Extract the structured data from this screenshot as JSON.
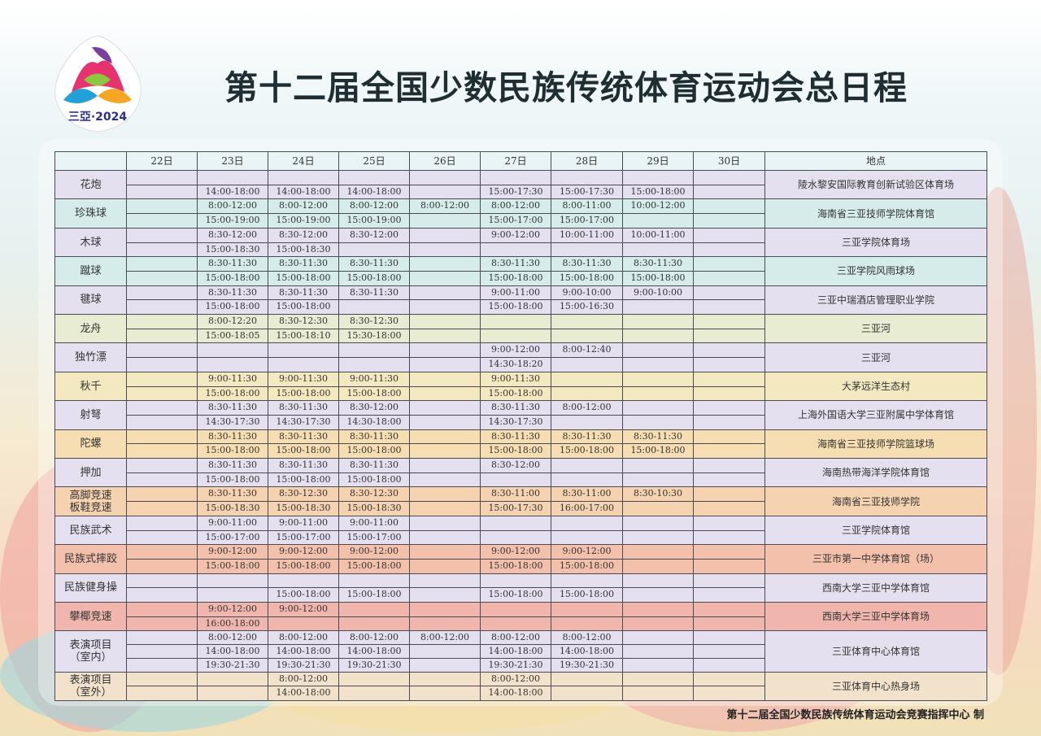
{
  "title": "第十二届全国少数民族传统体育运动会总日程",
  "logo": {
    "text": "三亞·2024"
  },
  "footer": "第十二届全国少数民族传统体育运动会竞赛指挥中心 制",
  "table": {
    "headers": [
      "",
      "22日",
      "23日",
      "24日",
      "25日",
      "26日",
      "27日",
      "28日",
      "29日",
      "30日",
      "地点"
    ],
    "events": [
      {
        "name": "花炮",
        "venue": "陵水黎安国际教育创新试验区体育场",
        "color": "#e4e0f0",
        "rows": [
          [
            "",
            "",
            "",
            "",
            "",
            "",
            "",
            "",
            ""
          ],
          [
            "",
            "14:00-18:00",
            "14:00-18:00",
            "14:00-18:00",
            "",
            "15:00-17:30",
            "15:00-17:30",
            "15:00-18:00",
            ""
          ]
        ]
      },
      {
        "name": "珍珠球",
        "venue": "海南省三亚技师学院体育馆",
        "color": "#d6ecea",
        "rows": [
          [
            "",
            "8:00-12:00",
            "8:00-12:00",
            "8:00-12:00",
            "8:00-12:00",
            "8:00-12:00",
            "8:00-11:00",
            "10:00-12:00",
            ""
          ],
          [
            "",
            "15:00-19:00",
            "15:00-19:00",
            "15:00-19:00",
            "",
            "15:00-17:00",
            "15:00-17:00",
            "",
            ""
          ]
        ]
      },
      {
        "name": "木球",
        "venue": "三亚学院体育场",
        "color": "#e4e0f0",
        "rows": [
          [
            "",
            "8:30-12:00",
            "8:30-12:00",
            "8:30-12:00",
            "",
            "9:00-12:00",
            "10:00-11:00",
            "10:00-11:00",
            ""
          ],
          [
            "",
            "15:00-18:30",
            "15:00-18:30",
            "",
            "",
            "",
            "",
            "",
            ""
          ]
        ]
      },
      {
        "name": "蹴球",
        "venue": "三亚学院风雨球场",
        "color": "#d6ecea",
        "rows": [
          [
            "",
            "8:30-11:30",
            "8:30-11:30",
            "8:30-11:30",
            "",
            "8:30-11:30",
            "8:30-11:30",
            "8:30-11:30",
            ""
          ],
          [
            "",
            "15:00-18:00",
            "15:00-18:00",
            "15:00-18:00",
            "",
            "15:00-18:00",
            "15:00-18:00",
            "15:00-18:00",
            ""
          ]
        ]
      },
      {
        "name": "毽球",
        "venue": "三亚中瑞酒店管理职业学院",
        "color": "#e4e0f0",
        "rows": [
          [
            "",
            "8:30-11:30",
            "8:30-11:30",
            "8:30-11:30",
            "",
            "9:00-11:00",
            "9:00-10:00",
            "9:00-10:00",
            ""
          ],
          [
            "",
            "15:00-18:00",
            "15:00-18:00",
            "",
            "",
            "15:00-18:00",
            "15:00-16:30",
            "",
            ""
          ]
        ]
      },
      {
        "name": "龙舟",
        "venue": "三亚河",
        "color": "#e8ecd2",
        "rows": [
          [
            "",
            "8:00-12:20",
            "8:30-12:30",
            "8:30-12:30",
            "",
            "",
            "",
            "",
            ""
          ],
          [
            "",
            "15:00-18:05",
            "15:00-18:10",
            "15:30-18:00",
            "",
            "",
            "",
            "",
            ""
          ]
        ]
      },
      {
        "name": "独竹漂",
        "venue": "三亚河",
        "color": "#e4e0f0",
        "rows": [
          [
            "",
            "",
            "",
            "",
            "",
            "9:00-12:00",
            "8:00-12:40",
            "",
            ""
          ],
          [
            "",
            "",
            "",
            "",
            "",
            "14:30-18:20",
            "",
            "",
            ""
          ]
        ]
      },
      {
        "name": "秋千",
        "venue": "大茅远洋生态村",
        "color": "#f4e8c0",
        "rows": [
          [
            "",
            "9:00-11:30",
            "9:00-11:30",
            "9:00-11:30",
            "",
            "9:00-11:30",
            "",
            "",
            ""
          ],
          [
            "",
            "15:00-18:00",
            "15:00-18:00",
            "15:00-18:00",
            "",
            "15:00-18:00",
            "",
            "",
            ""
          ]
        ]
      },
      {
        "name": "射弩",
        "venue": "上海外国语大学三亚附属中学体育馆",
        "color": "#e4e0f0",
        "rows": [
          [
            "",
            "8:30-11:30",
            "8:30-11:30",
            "8:30-12:00",
            "",
            "8:30-11:30",
            "8:00-12:00",
            "",
            ""
          ],
          [
            "",
            "14:30-17:30",
            "14:30-17:30",
            "14:30-18:00",
            "",
            "14:30-17:30",
            "",
            "",
            ""
          ]
        ]
      },
      {
        "name": "陀螺",
        "venue": "海南省三亚技师学院篮球场",
        "color": "#f6deb2",
        "rows": [
          [
            "",
            "8:30-11:30",
            "8:30-11:30",
            "8:30-11:30",
            "",
            "8:30-11:30",
            "8:30-11:30",
            "8:30-11:30",
            ""
          ],
          [
            "",
            "15:00-18:00",
            "15:00-18:00",
            "15:00-18:00",
            "",
            "15:00-18:00",
            "15:00-18:00",
            "15:00-18:00",
            ""
          ]
        ]
      },
      {
        "name": "押加",
        "venue": "海南热带海洋学院体育馆",
        "color": "#e4e0f0",
        "rows": [
          [
            "",
            "8:30-11:30",
            "8:30-11:30",
            "8:30-11:30",
            "",
            "8:30-12:00",
            "",
            "",
            ""
          ],
          [
            "",
            "15:00-18:00",
            "15:00-18:00",
            "15:00-18:00",
            "",
            "",
            "",
            "",
            ""
          ]
        ]
      },
      {
        "name": "高脚竞速\n板鞋竞速",
        "venue": "海南省三亚技师学院",
        "color": "#f5d2b0",
        "rows": [
          [
            "",
            "8:30-11:30",
            "8:30-12:30",
            "8:30-12:30",
            "",
            "8:30-11:00",
            "8:30-11:00",
            "8:30-10:30",
            ""
          ],
          [
            "",
            "15:00-18:30",
            "15:00-18:30",
            "15:00-18:30",
            "",
            "15:00-17:30",
            "16:00-17:00",
            "",
            ""
          ]
        ]
      },
      {
        "name": "民族武术",
        "venue": "三亚学院体育馆",
        "color": "#e4e0f0",
        "rows": [
          [
            "",
            "9:00-11:00",
            "9:00-11:00",
            "9:00-11:00",
            "",
            "",
            "",
            "",
            ""
          ],
          [
            "",
            "15:00-17:00",
            "15:00-17:00",
            "15:00-17:00",
            "",
            "",
            "",
            "",
            ""
          ]
        ]
      },
      {
        "name": "民族式摔跤",
        "venue": "三亚市第一中学体育馆（场）",
        "color": "#f3c0ac",
        "rows": [
          [
            "",
            "9:00-12:00",
            "9:00-12:00",
            "9:00-12:00",
            "",
            "9:00-12:00",
            "9:00-12:00",
            "",
            ""
          ],
          [
            "",
            "15:00-18:00",
            "15:00-18:00",
            "15:00-18:00",
            "",
            "15:00-18:00",
            "15:00-18:00",
            "",
            ""
          ]
        ]
      },
      {
        "name": "民族健身操",
        "venue": "西南大学三亚中学体育馆",
        "color": "#e4e0f0",
        "rows": [
          [
            "",
            "",
            "",
            "",
            "",
            "",
            "",
            "",
            ""
          ],
          [
            "",
            "",
            "15:00-18:00",
            "15:00-18:00",
            "",
            "15:00-18:00",
            "15:00-18:00",
            "",
            ""
          ]
        ]
      },
      {
        "name": "攀椰竞速",
        "venue": "西南大学三亚中学体育场",
        "color": "#f0b6ae",
        "rows": [
          [
            "",
            "9:00-12:00",
            "9:00-12:00",
            "",
            "",
            "",
            "",
            "",
            ""
          ],
          [
            "",
            "16:00-18:00",
            "",
            "",
            "",
            "",
            "",
            "",
            ""
          ]
        ]
      },
      {
        "name": "表演项目\n（室内）",
        "venue": "三亚体育中心体育馆",
        "color": "#e4e0f0",
        "rows": [
          [
            "",
            "8:00-12:00",
            "8:00-12:00",
            "8:00-12:00",
            "8:00-12:00",
            "8:00-12:00",
            "8:00-12:00",
            "",
            ""
          ],
          [
            "",
            "14:00-18:00",
            "14:00-18:00",
            "14:00-18:00",
            "",
            "14:00-18:00",
            "14:00-18:00",
            "",
            ""
          ],
          [
            "",
            "19:30-21:30",
            "19:30-21:30",
            "19:30-21:30",
            "",
            "19:30-21:30",
            "19:30-21:30",
            "",
            ""
          ]
        ]
      },
      {
        "name": "表演项目\n（室外）",
        "venue": "三亚体育中心热身场",
        "color": "#f2e2cc",
        "rows": [
          [
            "",
            "",
            "8:00-12:00",
            "",
            "",
            "8:00-12:00",
            "",
            "",
            ""
          ],
          [
            "",
            "",
            "14:00-18:00",
            "",
            "",
            "14:00-18:00",
            "",
            "",
            ""
          ]
        ]
      }
    ]
  }
}
